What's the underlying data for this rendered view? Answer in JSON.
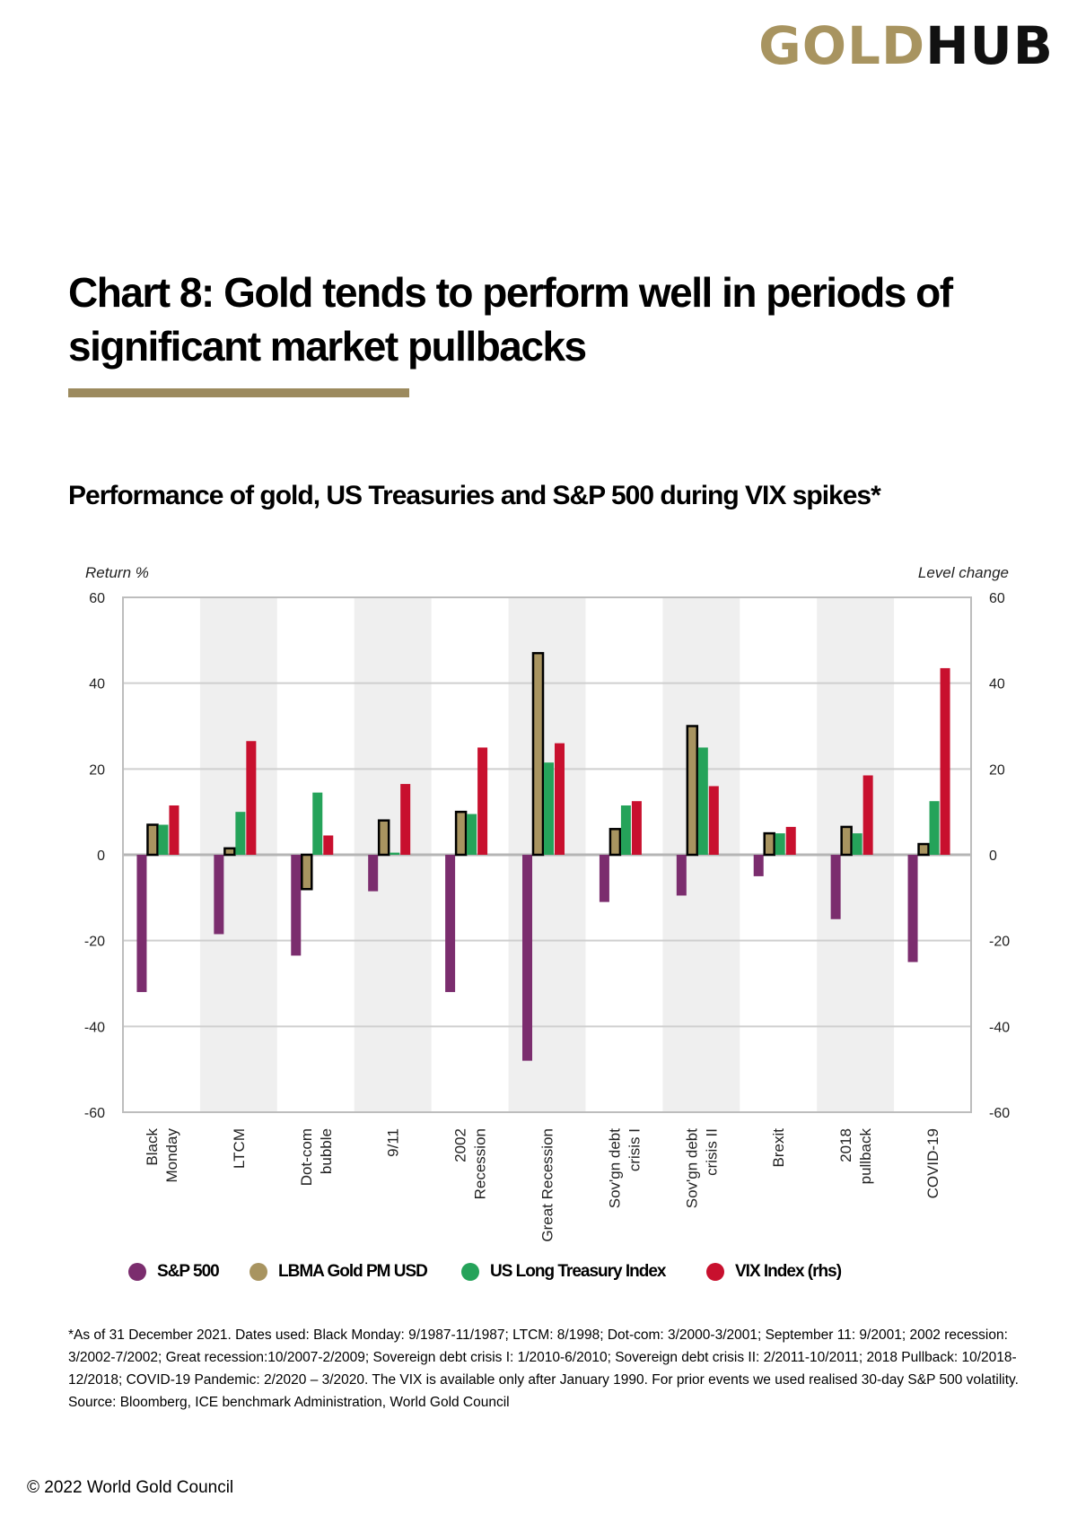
{
  "logo": {
    "part1": "GOLD",
    "part2": "HUB"
  },
  "title": "Chart 8: Gold tends to perform well in periods of significant market pullbacks",
  "subtitle": "Performance of gold, US Treasuries and S&P 500 during VIX spikes*",
  "chart_data": {
    "type": "bar",
    "ylabel": "Return %",
    "y2label": "Level change",
    "ylim": [
      -60,
      60
    ],
    "y2lim": [
      -60,
      60
    ],
    "yticks": [
      60,
      40,
      20,
      0,
      -20,
      -40,
      -60
    ],
    "legend_position": "bottom",
    "categories": [
      [
        "Black",
        "Monday"
      ],
      [
        "LTCM"
      ],
      [
        "Dot-com",
        "bubble"
      ],
      [
        "9/11"
      ],
      [
        "2002",
        "Recession"
      ],
      [
        "Great Recession"
      ],
      [
        "Sov'gn debt",
        "crisis I"
      ],
      [
        "Sov'gn debt",
        "crisis II"
      ],
      [
        "Brexit"
      ],
      [
        "2018",
        "pullback"
      ],
      [
        "COVID-19"
      ]
    ],
    "series": [
      {
        "name": "S&P 500",
        "color": "#7b2d6e",
        "values": [
          -32,
          -18.5,
          -23.5,
          -8.5,
          -32,
          -48,
          -11,
          -9.5,
          -5,
          -15,
          -25
        ]
      },
      {
        "name": "LBMA Gold PM USD",
        "color": "#a89460",
        "outline": "#000000",
        "values": [
          7,
          1.5,
          -8,
          8,
          10,
          47,
          6,
          30,
          5,
          6.5,
          2.5
        ]
      },
      {
        "name": "US Long Treasury Index",
        "color": "#25a35a",
        "values": [
          7,
          10,
          14.5,
          0.5,
          9.5,
          21.5,
          11.5,
          25,
          5,
          5,
          12.5
        ]
      },
      {
        "name": "VIX Index (rhs)",
        "color": "#c8102e",
        "values": [
          11.5,
          26.5,
          4.5,
          16.5,
          25,
          26,
          12.5,
          16,
          6.5,
          18.5,
          43.5
        ]
      }
    ]
  },
  "notes": {
    "line1": "*As of 31 December 2021. Dates used: Black Monday: 9/1987-11/1987; LTCM: 8/1998; Dot-com: 3/2000-3/2001; September 11: 9/2001; 2002 recession: 3/2002-7/2002; Great recession:10/2007-2/2009; Sovereign debt crisis I: 1/2010-6/2010; Sovereign debt crisis II: 2/2011-10/2011; 2018 Pullback: 10/2018-12/2018; COVID-19 Pandemic: 2/2020 – 3/2020. The VIX is available only after January 1990. For prior events we used realised 30-day S&P 500 volatility.",
    "source": "Source: Bloomberg, ICE benchmark Administration, World Gold Council"
  },
  "copyright": "© 2022 World Gold Council"
}
